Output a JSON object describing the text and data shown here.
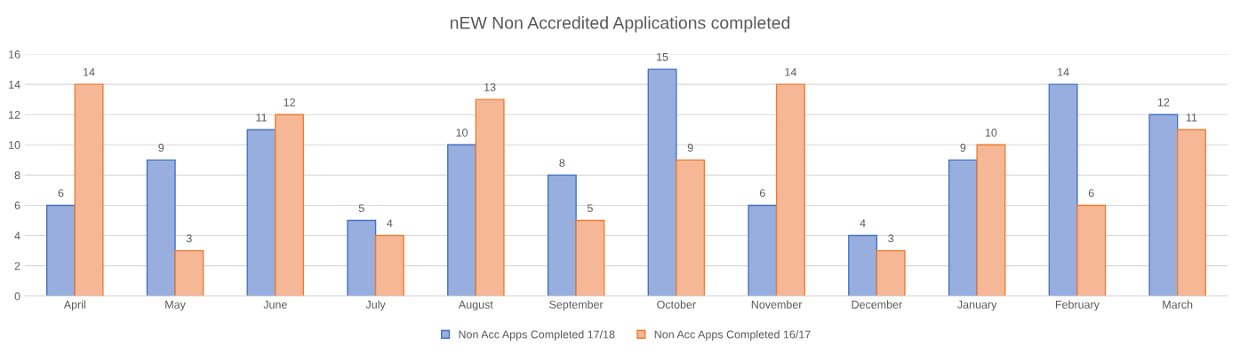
{
  "chart_data": {
    "type": "bar",
    "title": "nEW Non Accredited Applications completed",
    "categories": [
      "April",
      "May",
      "June",
      "July",
      "August",
      "September",
      "October",
      "November",
      "December",
      "January",
      "February",
      "March"
    ],
    "series": [
      {
        "name": "Non Acc Apps Completed 17/18",
        "color": "#98aede",
        "values": [
          6,
          9,
          11,
          5,
          10,
          8,
          15,
          6,
          4,
          9,
          14,
          12
        ]
      },
      {
        "name": "Non Acc Apps Completed 16/17",
        "color": "#f6b797",
        "values": [
          14,
          3,
          12,
          4,
          13,
          5,
          9,
          14,
          3,
          10,
          6,
          11
        ]
      }
    ],
    "ylim": [
      0,
      16
    ],
    "yticks": [
      0,
      2,
      4,
      6,
      8,
      10,
      12,
      14,
      16
    ],
    "grid": "y",
    "legend": "bottom",
    "data_labels": true
  }
}
